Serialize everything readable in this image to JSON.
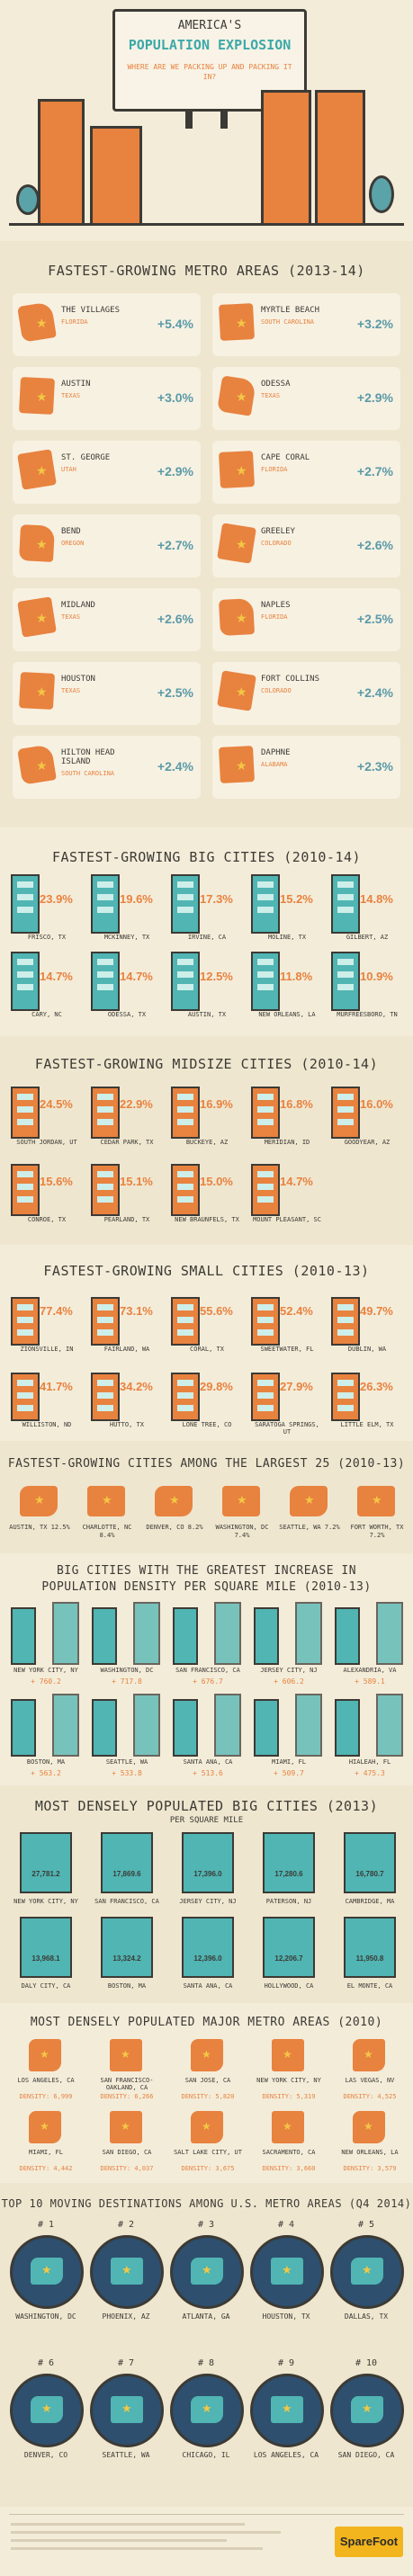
{
  "header": {
    "title_line1": "AMERICA'S",
    "title_line2": "POPULATION EXPLOSION",
    "subtitle": "WHERE ARE WE PACKING UP AND PACKING IT IN?"
  },
  "metro": {
    "title": "FASTEST-GROWING METRO AREAS (2013-14)",
    "items": [
      {
        "name": "THE VILLAGES",
        "state": "FLORIDA",
        "pct": "+5.4%"
      },
      {
        "name": "MYRTLE BEACH",
        "state": "SOUTH CAROLINA",
        "pct": "+3.2%"
      },
      {
        "name": "AUSTIN",
        "state": "TEXAS",
        "pct": "+3.0%"
      },
      {
        "name": "ODESSA",
        "state": "TEXAS",
        "pct": "+2.9%"
      },
      {
        "name": "ST. GEORGE",
        "state": "UTAH",
        "pct": "+2.9%"
      },
      {
        "name": "CAPE CORAL",
        "state": "FLORIDA",
        "pct": "+2.7%"
      },
      {
        "name": "BEND",
        "state": "OREGON",
        "pct": "+2.7%"
      },
      {
        "name": "GREELEY",
        "state": "COLORADO",
        "pct": "+2.6%"
      },
      {
        "name": "MIDLAND",
        "state": "TEXAS",
        "pct": "+2.6%"
      },
      {
        "name": "NAPLES",
        "state": "FLORIDA",
        "pct": "+2.5%"
      },
      {
        "name": "HOUSTON",
        "state": "TEXAS",
        "pct": "+2.5%"
      },
      {
        "name": "FORT COLLINS",
        "state": "COLORADO",
        "pct": "+2.4%"
      },
      {
        "name": "HILTON HEAD ISLAND",
        "state": "SOUTH CAROLINA",
        "pct": "+2.4%"
      },
      {
        "name": "DAPHNE",
        "state": "ALABAMA",
        "pct": "+2.3%"
      }
    ]
  },
  "big": {
    "title": "FASTEST-GROWING BIG CITIES (2010-14)",
    "row1": [
      {
        "pct": "23.9%",
        "city": "FRISCO, TX"
      },
      {
        "pct": "19.6%",
        "city": "MCKINNEY, TX"
      },
      {
        "pct": "17.3%",
        "city": "IRVINE, CA"
      },
      {
        "pct": "15.2%",
        "city": "MOLINE, TX"
      },
      {
        "pct": "14.8%",
        "city": "GILBERT, AZ"
      }
    ],
    "row2": [
      {
        "pct": "14.7%",
        "city": "CARY, NC"
      },
      {
        "pct": "14.7%",
        "city": "ODESSA, TX"
      },
      {
        "pct": "12.5%",
        "city": "AUSTIN, TX"
      },
      {
        "pct": "11.8%",
        "city": "NEW ORLEANS, LA"
      },
      {
        "pct": "10.9%",
        "city": "MURFREESBORO, TN"
      }
    ]
  },
  "mid": {
    "title": "FASTEST-GROWING MIDSIZE CITIES (2010-14)",
    "row1": [
      {
        "pct": "24.5%",
        "city": "SOUTH JORDAN, UT"
      },
      {
        "pct": "22.9%",
        "city": "CEDAR PARK, TX"
      },
      {
        "pct": "16.9%",
        "city": "BUCKEYE, AZ"
      },
      {
        "pct": "16.8%",
        "city": "MERIDIAN, ID"
      },
      {
        "pct": "16.0%",
        "city": "GOODYEAR, AZ"
      }
    ],
    "row2": [
      {
        "pct": "15.6%",
        "city": "CONROE, TX"
      },
      {
        "pct": "15.1%",
        "city": "PEARLAND, TX"
      },
      {
        "pct": "15.0%",
        "city": "NEW BRAUNFELS, TX"
      },
      {
        "pct": "14.7%",
        "city": "MOUNT PLEASANT, SC"
      }
    ]
  },
  "small": {
    "title": "FASTEST-GROWING SMALL CITIES (2010-13)",
    "row1": [
      {
        "pct": "77.4%",
        "city": "ZIONSVILLE, IN"
      },
      {
        "pct": "73.1%",
        "city": "FAIRLAND, WA"
      },
      {
        "pct": "55.6%",
        "city": "CORAL, TX"
      },
      {
        "pct": "52.4%",
        "city": "SWEETWATER, FL"
      },
      {
        "pct": "49.7%",
        "city": "DUBLIN, WA"
      }
    ],
    "row2": [
      {
        "pct": "41.7%",
        "city": "WILLISTON, ND"
      },
      {
        "pct": "34.2%",
        "city": "HUTTO, TX"
      },
      {
        "pct": "29.8%",
        "city": "LONE TREE, CO"
      },
      {
        "pct": "27.9%",
        "city": "SARATOGA SPRINGS, UT"
      },
      {
        "pct": "26.3%",
        "city": "LITTLE ELM, TX"
      }
    ]
  },
  "largest": {
    "title": "FASTEST-GROWING CITIES AMONG THE LARGEST 25 (2010-13)",
    "items": [
      {
        "text": "AUSTIN, TX 12.5%"
      },
      {
        "text": "CHARLOTTE, NC 8.4%"
      },
      {
        "text": "DENVER, CO 8.2%"
      },
      {
        "text": "WASHINGTON, DC 7.4%"
      },
      {
        "text": "SEATTLE, WA 7.2%"
      },
      {
        "text": "FORT WORTH, TX 7.2%"
      }
    ]
  },
  "density": {
    "title_line1": "BIG CITIES WITH THE GREATEST INCREASE IN",
    "title_line2": "POPULATION DENSITY PER SQUARE MILE (2010-13)",
    "row1": [
      {
        "city": "NEW YORK CITY, NY",
        "delta": "+ 760.2"
      },
      {
        "city": "WASHINGTON, DC",
        "delta": "+ 717.8"
      },
      {
        "city": "SAN FRANCISCO, CA",
        "delta": "+ 676.7"
      },
      {
        "city": "JERSEY CITY, NJ",
        "delta": "+ 606.2"
      },
      {
        "city": "ALEXANDRIA, VA",
        "delta": "+ 589.1"
      }
    ],
    "row2": [
      {
        "city": "BOSTON, MA",
        "delta": "+ 563.2"
      },
      {
        "city": "SEATTLE, WA",
        "delta": "+ 533.8"
      },
      {
        "city": "SANTA ANA, CA",
        "delta": "+ 513.6"
      },
      {
        "city": "MIAMI, FL",
        "delta": "+ 509.7"
      },
      {
        "city": "HIALEAH, FL",
        "delta": "+ 475.3"
      }
    ]
  },
  "dense": {
    "title": "MOST DENSELY POPULATED BIG CITIES (2013)",
    "subtitle": "PER SQUARE MILE",
    "row1": [
      {
        "city": "NEW YORK CITY, NY",
        "value": "27,781.2"
      },
      {
        "city": "SAN FRANCISCO, CA",
        "value": "17,869.6"
      },
      {
        "city": "JERSEY CITY, NJ",
        "value": "17,396.0"
      },
      {
        "city": "PATERSON, NJ",
        "value": "17,280.6"
      },
      {
        "city": "CAMBRIDGE, MA",
        "value": "16,780.7"
      }
    ],
    "row2": [
      {
        "city": "DALY CITY, CA",
        "value": "13,968.1"
      },
      {
        "city": "BOSTON, MA",
        "value": "13,324.2"
      },
      {
        "city": "SANTA ANA, CA",
        "value": "12,396.0"
      },
      {
        "city": "HOLLYWOOD, CA",
        "value": "12,206.7"
      },
      {
        "city": "EL MONTE, CA",
        "value": "11,950.8"
      }
    ]
  },
  "metro_dense": {
    "title": "MOST DENSELY POPULATED MAJOR METRO AREAS (2010)",
    "row1": [
      {
        "name": "LOS ANGELES, CA",
        "density": "DENSITY: 6,999"
      },
      {
        "name": "SAN FRANCISCO-OAKLAND, CA",
        "density": "DENSITY: 6,266"
      },
      {
        "name": "SAN JOSE, CA",
        "density": "DENSITY: 5,820"
      },
      {
        "name": "NEW YORK CITY, NY",
        "density": "DENSITY: 5,319"
      },
      {
        "name": "LAS VEGAS, NV",
        "density": "DENSITY: 4,525"
      }
    ],
    "row2": [
      {
        "name": "MIAMI, FL",
        "density": "DENSITY: 4,442"
      },
      {
        "name": "SAN DIEGO, CA",
        "density": "DENSITY: 4,037"
      },
      {
        "name": "SALT LAKE CITY, UT",
        "density": "DENSITY: 3,675"
      },
      {
        "name": "SACRAMENTO, CA",
        "density": "DENSITY: 3,660"
      },
      {
        "name": "NEW ORLEANS, LA",
        "density": "DENSITY: 3,579"
      }
    ]
  },
  "moving": {
    "title": "TOP 10 MOVING DESTINATIONS AMONG U.S. METRO AREAS (Q4 2014)",
    "row1": [
      {
        "rank": "# 1",
        "city": "WASHINGTON, DC"
      },
      {
        "rank": "# 2",
        "city": "PHOENIX, AZ"
      },
      {
        "rank": "# 3",
        "city": "ATLANTA, GA"
      },
      {
        "rank": "# 4",
        "city": "HOUSTON, TX"
      },
      {
        "rank": "# 5",
        "city": "DALLAS, TX"
      }
    ],
    "row2": [
      {
        "rank": "# 6",
        "city": "DENVER, CO"
      },
      {
        "rank": "# 7",
        "city": "SEATTLE, WA"
      },
      {
        "rank": "# 8",
        "city": "CHICAGO, IL"
      },
      {
        "rank": "# 9",
        "city": "LOS ANGELES, CA"
      },
      {
        "rank": "# 10",
        "city": "SAN DIEGO, CA"
      }
    ]
  },
  "footer": {
    "logo": "SpareFoot"
  },
  "colors": {
    "orange": "#e8823f",
    "teal": "#50b5b3",
    "navy": "#2e4f6e",
    "bg": "#f3ecd9",
    "dark": "#3c3a35"
  }
}
